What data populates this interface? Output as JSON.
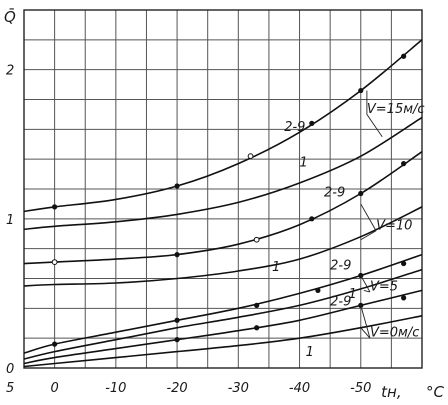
{
  "chart_data": {
    "type": "line",
    "title": "",
    "ylabel": "Q̄",
    "xlabel": "tн, °C",
    "xlim": [
      5,
      -60
    ],
    "ylim": [
      0,
      2.4
    ],
    "grid": true,
    "x_ticks": [
      {
        "value": 5,
        "label": "5"
      },
      {
        "value": 0,
        "label": "0"
      },
      {
        "value": -10,
        "label": "-10"
      },
      {
        "value": -20,
        "label": "-20"
      },
      {
        "value": -30,
        "label": "-30"
      },
      {
        "value": -40,
        "label": "-40"
      },
      {
        "value": -50,
        "label": "-50"
      },
      {
        "value": -55,
        "label": "tн,"
      },
      {
        "value": -60,
        "label": "°C"
      }
    ],
    "y_ticks": [
      {
        "value": 0,
        "label": "0"
      },
      {
        "value": 1,
        "label": "1"
      },
      {
        "value": 2,
        "label": "2"
      }
    ],
    "series": [
      {
        "name": "V=15м/с, 2-9",
        "group": "V=15м/с",
        "line": "2-9",
        "x": [
          5,
          0,
          -10,
          -20,
          -30,
          -40,
          -50,
          -60
        ],
        "y": [
          1.05,
          1.08,
          1.13,
          1.22,
          1.37,
          1.58,
          1.86,
          2.2
        ],
        "markers": [
          {
            "x": 0,
            "y": 1.08,
            "open": false
          },
          {
            "x": -20,
            "y": 1.22,
            "open": false
          },
          {
            "x": -32,
            "y": 1.42,
            "open": true
          },
          {
            "x": -42,
            "y": 1.64,
            "open": false
          },
          {
            "x": -50,
            "y": 1.86,
            "open": false
          },
          {
            "x": -57,
            "y": 2.09,
            "open": false
          }
        ]
      },
      {
        "name": "V=15м/с, 1",
        "group": "V=15м/с",
        "line": "1",
        "x": [
          5,
          0,
          -10,
          -20,
          -30,
          -40,
          -50,
          -60
        ],
        "y": [
          0.93,
          0.95,
          0.98,
          1.03,
          1.11,
          1.24,
          1.42,
          1.68
        ],
        "markers": []
      },
      {
        "name": "V=10, 2-9",
        "group": "V=10",
        "line": "2-9",
        "x": [
          5,
          0,
          -10,
          -20,
          -30,
          -40,
          -50,
          -60
        ],
        "y": [
          0.7,
          0.71,
          0.73,
          0.76,
          0.83,
          0.96,
          1.17,
          1.45
        ],
        "markers": [
          {
            "x": 0,
            "y": 0.71,
            "open": true
          },
          {
            "x": -20,
            "y": 0.76,
            "open": false
          },
          {
            "x": -33,
            "y": 0.86,
            "open": true
          },
          {
            "x": -42,
            "y": 1.0,
            "open": false
          },
          {
            "x": -50,
            "y": 1.17,
            "open": false
          },
          {
            "x": -57,
            "y": 1.37,
            "open": false
          }
        ]
      },
      {
        "name": "V=10, 1",
        "group": "V=10",
        "line": "1",
        "x": [
          5,
          0,
          -10,
          -20,
          -30,
          -40,
          -50,
          -60
        ],
        "y": [
          0.55,
          0.56,
          0.57,
          0.6,
          0.65,
          0.73,
          0.88,
          1.08
        ],
        "markers": []
      },
      {
        "name": "V=5, 2-9",
        "group": "V=5",
        "line": "2-9",
        "x": [
          5,
          0,
          -10,
          -20,
          -30,
          -40,
          -50,
          -60
        ],
        "y": [
          0.1,
          0.16,
          0.24,
          0.32,
          0.4,
          0.5,
          0.62,
          0.76
        ],
        "markers": [
          {
            "x": 0,
            "y": 0.16,
            "open": false
          },
          {
            "x": -20,
            "y": 0.32,
            "open": false
          },
          {
            "x": -33,
            "y": 0.42,
            "open": false
          },
          {
            "x": -43,
            "y": 0.52,
            "open": false
          },
          {
            "x": -50,
            "y": 0.62,
            "open": false
          },
          {
            "x": -57,
            "y": 0.7,
            "open": false
          }
        ]
      },
      {
        "name": "V=5, 1",
        "group": "V=5",
        "line": "1",
        "x": [
          5,
          0,
          -10,
          -20,
          -30,
          -40,
          -50,
          -60
        ],
        "y": [
          0.06,
          0.11,
          0.19,
          0.27,
          0.34,
          0.42,
          0.53,
          0.66
        ],
        "markers": []
      },
      {
        "name": "V=0м/с, 2-9",
        "group": "V=0м/с",
        "line": "2-9",
        "x": [
          5,
          0,
          -10,
          -20,
          -30,
          -40,
          -50,
          -60
        ],
        "y": [
          0.03,
          0.07,
          0.13,
          0.19,
          0.25,
          0.32,
          0.42,
          0.52
        ],
        "markers": [
          {
            "x": -20,
            "y": 0.19,
            "open": false
          },
          {
            "x": -33,
            "y": 0.27,
            "open": false
          },
          {
            "x": -50,
            "y": 0.42,
            "open": false
          },
          {
            "x": -57,
            "y": 0.47,
            "open": false
          }
        ]
      },
      {
        "name": "V=0м/с, 1",
        "group": "V=0м/с",
        "line": "1",
        "x": [
          5,
          0,
          -10,
          -20,
          -30,
          -40,
          -50,
          -60
        ],
        "y": [
          0.01,
          0.03,
          0.07,
          0.11,
          0.15,
          0.2,
          0.27,
          0.35
        ],
        "markers": []
      }
    ],
    "annotations": [
      {
        "text": "2-9",
        "x": -37.5,
        "y": 1.59
      },
      {
        "text": "V=15м/с",
        "x": -51,
        "y": 1.71
      },
      {
        "text": "1",
        "x": -40,
        "y": 1.35
      },
      {
        "text": "2-9",
        "x": -44,
        "y": 1.15
      },
      {
        "text": "V=10",
        "x": -52.5,
        "y": 0.93
      },
      {
        "text": "1",
        "x": -35.5,
        "y": 0.65
      },
      {
        "text": "2-9",
        "x": -45,
        "y": 0.66
      },
      {
        "text": "V=5",
        "x": -51.5,
        "y": 0.52
      },
      {
        "text": "1",
        "x": -48,
        "y": 0.47
      },
      {
        "text": "2-9",
        "x": -45,
        "y": 0.42
      },
      {
        "text": "V=0м/с",
        "x": -51.5,
        "y": 0.21
      },
      {
        "text": "1",
        "x": -41,
        "y": 0.08
      }
    ]
  }
}
